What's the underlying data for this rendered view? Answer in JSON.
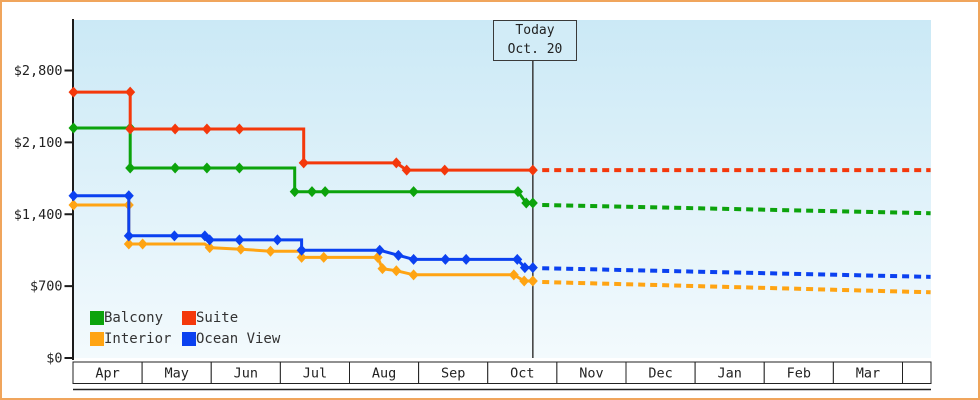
{
  "frame": {
    "border_color": "#f0a55c"
  },
  "today_box": {
    "line1": "Today",
    "line2": "Oct. 20"
  },
  "chart_data": {
    "type": "line",
    "subtype": "step-price-history-with-forecast",
    "title": "",
    "x_axis": {
      "months": [
        "Apr",
        "May",
        "Jun",
        "Jul",
        "Aug",
        "Sep",
        "Oct",
        "Nov",
        "Dec",
        "Jan",
        "Feb",
        "Mar"
      ],
      "trailing_empty_cell": true
    },
    "y_axis": {
      "ticks": [
        {
          "label": "$0",
          "value": 0
        },
        {
          "label": "$700",
          "value": 700
        },
        {
          "label": "$1,400",
          "value": 1400
        },
        {
          "label": "$2,100",
          "value": 2100
        },
        {
          "label": "$2,800",
          "value": 2800
        }
      ],
      "max": 2800
    },
    "today": {
      "month_position": 6.645,
      "date_label": "Oct. 20"
    },
    "plot": {
      "bg_top": "#cbe9f6",
      "bg_bottom": "#f3fafd",
      "axis_color": "#1b1b1b",
      "today_line_color": "#3a3a3a"
    },
    "legend": [
      {
        "label": "Balcony",
        "series": "balcony"
      },
      {
        "label": "Suite",
        "series": "suite"
      },
      {
        "label": "Interior",
        "series": "interior"
      },
      {
        "label": "Ocean View",
        "series": "ocean_view"
      }
    ],
    "series": [
      {
        "id": "interior",
        "name": "Interior",
        "color": "#ffa413",
        "points": [
          [
            0,
            1490,
            1
          ],
          [
            0.8,
            1490,
            1
          ],
          [
            0.8,
            1110,
            1
          ],
          [
            1.0,
            1110,
            1
          ],
          [
            1.9,
            1110,
            0
          ],
          [
            1.97,
            1075,
            1
          ],
          [
            2.42,
            1060,
            1
          ],
          [
            2.85,
            1040,
            1
          ],
          [
            3.28,
            1040,
            0
          ],
          [
            3.3,
            980,
            1
          ],
          [
            3.62,
            980,
            1
          ],
          [
            4.4,
            980,
            1
          ],
          [
            4.47,
            870,
            1
          ],
          [
            4.67,
            850,
            1
          ],
          [
            4.92,
            810,
            1
          ],
          [
            6.37,
            810,
            1
          ],
          [
            6.52,
            750,
            1
          ],
          [
            6.645,
            750,
            1
          ]
        ],
        "forecast": [
          [
            6.78,
            740
          ],
          [
            12.4,
            640
          ]
        ]
      },
      {
        "id": "ocean_view",
        "name": "Ocean View",
        "color": "#0b41f0",
        "points": [
          [
            0,
            1580,
            1
          ],
          [
            0.8,
            1580,
            1
          ],
          [
            0.8,
            1190,
            1
          ],
          [
            1.46,
            1190,
            1
          ],
          [
            1.9,
            1190,
            1
          ],
          [
            1.97,
            1150,
            1
          ],
          [
            2.4,
            1150,
            1
          ],
          [
            2.95,
            1150,
            1
          ],
          [
            3.3,
            1150,
            0
          ],
          [
            3.3,
            1050,
            1
          ],
          [
            4.43,
            1050,
            1
          ],
          [
            4.7,
            1000,
            1
          ],
          [
            4.92,
            960,
            1
          ],
          [
            5.38,
            960,
            1
          ],
          [
            5.68,
            960,
            1
          ],
          [
            6.42,
            960,
            1
          ],
          [
            6.53,
            880,
            1
          ],
          [
            6.645,
            880,
            1
          ]
        ],
        "forecast": [
          [
            6.78,
            875
          ],
          [
            12.4,
            790
          ]
        ]
      },
      {
        "id": "balcony",
        "name": "Balcony",
        "color": "#0ca30c",
        "points": [
          [
            0,
            2240,
            1
          ],
          [
            0.82,
            2240,
            1
          ],
          [
            0.82,
            1850,
            1
          ],
          [
            1.47,
            1850,
            1
          ],
          [
            1.93,
            1850,
            1
          ],
          [
            2.4,
            1850,
            1
          ],
          [
            3.2,
            1850,
            0
          ],
          [
            3.2,
            1620,
            1
          ],
          [
            3.45,
            1620,
            1
          ],
          [
            3.64,
            1620,
            1
          ],
          [
            4.92,
            1620,
            1
          ],
          [
            6.43,
            1620,
            1
          ],
          [
            6.55,
            1510,
            1
          ],
          [
            6.645,
            1510,
            1
          ]
        ],
        "forecast": [
          [
            6.78,
            1490
          ],
          [
            12.4,
            1410
          ]
        ]
      },
      {
        "id": "suite",
        "name": "Suite",
        "color": "#f4380b",
        "points": [
          [
            0,
            2590,
            1
          ],
          [
            0.82,
            2590,
            1
          ],
          [
            0.82,
            2230,
            1
          ],
          [
            1.47,
            2230,
            1
          ],
          [
            1.93,
            2230,
            1
          ],
          [
            2.4,
            2230,
            1
          ],
          [
            3.33,
            2230,
            0
          ],
          [
            3.33,
            1900,
            1
          ],
          [
            4.67,
            1900,
            1
          ],
          [
            4.82,
            1830,
            1
          ],
          [
            5.37,
            1830,
            1
          ],
          [
            6.645,
            1830,
            1
          ]
        ],
        "forecast": [
          [
            6.78,
            1830
          ],
          [
            12.4,
            1830
          ]
        ]
      }
    ]
  }
}
